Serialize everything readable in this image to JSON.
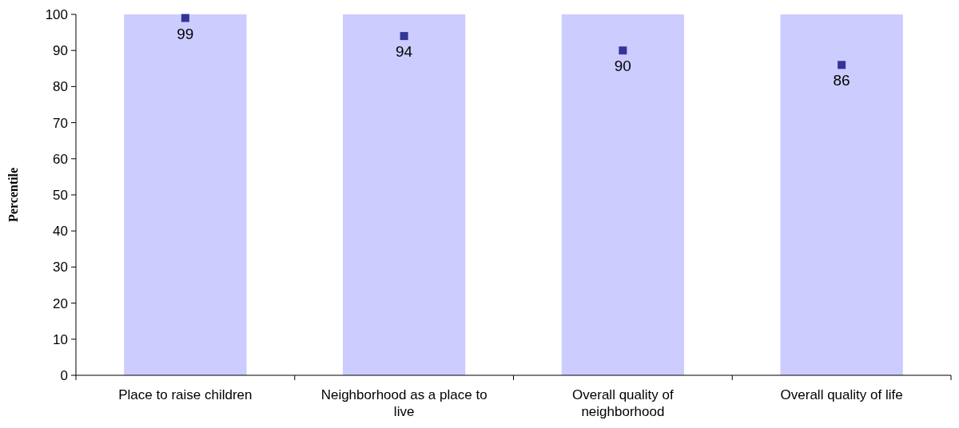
{
  "chart_data": {
    "type": "bar",
    "ylabel": "Percentile",
    "categories": [
      "Place to raise children",
      "Neighborhood as a place to live",
      "Overall quality of neighborhood",
      "Overall quality of life"
    ],
    "series": [
      {
        "type": "bar",
        "color": "#ccccff",
        "values": [
          100,
          100,
          100,
          100
        ]
      },
      {
        "type": "scatter",
        "color": "#333399",
        "marker": "square",
        "data_labels": true,
        "x": [
          "Place to raise children",
          "Neighborhood as a place to live",
          "Overall quality of neighborhood",
          "Overall quality of life"
        ],
        "values": [
          99,
          94,
          90,
          86
        ]
      }
    ],
    "ylim": [
      0,
      100
    ],
    "yticks": [
      0,
      10,
      20,
      30,
      40,
      50,
      60,
      70,
      80,
      90,
      100
    ],
    "grid": false
  }
}
